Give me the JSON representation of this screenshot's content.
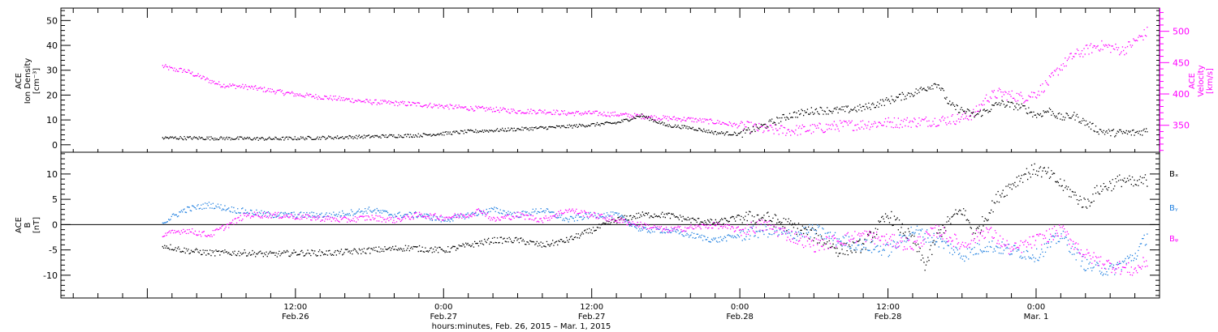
{
  "chart_data": [
    {
      "type": "scatter",
      "panel": "top",
      "ylabel_left": [
        "ACE",
        "Ion Density",
        "[cm⁻³]"
      ],
      "ylabel_right": [
        "ACE",
        "Velocity",
        "[km/s]"
      ],
      "ylim_left": [
        -3,
        55
      ],
      "yticks_left": [
        "0",
        "10",
        "20",
        "30",
        "40",
        "50"
      ],
      "ylim_right": [
        307,
        537
      ],
      "yticks_right": [
        "350",
        "400",
        "450",
        "500"
      ],
      "x_range_hours_from_feb26_0000": [
        -7,
        82
      ],
      "series": [
        {
          "axis": "left",
          "color": "#000000",
          "points": [
            [
              1.2,
              3
            ],
            [
              6,
              2.8
            ],
            [
              10,
              2.6
            ],
            [
              14,
              3
            ],
            [
              18,
              3.5
            ],
            [
              22,
              4
            ],
            [
              26,
              5.5
            ],
            [
              30,
              6.5
            ],
            [
              34,
              7.5
            ],
            [
              38,
              9
            ],
            [
              40,
              12
            ],
            [
              41,
              10
            ],
            [
              42,
              8
            ],
            [
              44,
              7
            ],
            [
              46,
              5
            ],
            [
              48,
              4.5
            ],
            [
              50,
              8
            ],
            [
              52,
              12
            ],
            [
              54,
              14
            ],
            [
              56,
              14
            ],
            [
              58,
              15
            ],
            [
              60,
              18
            ],
            [
              62,
              21
            ],
            [
              64,
              25
            ],
            [
              65,
              16
            ],
            [
              67,
              12
            ],
            [
              68,
              14
            ],
            [
              69,
              17
            ],
            [
              71,
              15
            ],
            [
              72,
              12
            ],
            [
              73,
              14
            ],
            [
              74,
              11
            ],
            [
              75,
              12
            ],
            [
              76,
              9
            ],
            [
              77,
              6
            ],
            [
              78,
              5
            ],
            [
              79,
              5
            ],
            [
              80,
              5
            ],
            [
              81,
              6
            ]
          ]
        },
        {
          "axis": "right",
          "color": "#ff00ff",
          "points": [
            [
              1.2,
              445
            ],
            [
              2,
              440
            ],
            [
              3,
              438
            ],
            [
              4,
              430
            ],
            [
              5,
              422
            ],
            [
              6,
              415
            ],
            [
              8,
              412
            ],
            [
              10,
              406
            ],
            [
              12,
              400
            ],
            [
              14,
              396
            ],
            [
              16,
              392
            ],
            [
              18,
              388
            ],
            [
              20,
              386
            ],
            [
              22,
              384
            ],
            [
              24,
              381
            ],
            [
              26,
              378
            ],
            [
              28,
              376
            ],
            [
              30,
              373
            ],
            [
              32,
              373
            ],
            [
              34,
              370
            ],
            [
              36,
              370
            ],
            [
              38,
              368
            ],
            [
              40,
              365
            ],
            [
              42,
              362
            ],
            [
              44,
              360
            ],
            [
              46,
              356
            ],
            [
              48,
              350
            ],
            [
              50,
              344
            ],
            [
              52,
              342
            ],
            [
              54,
              345
            ],
            [
              56,
              350
            ],
            [
              58,
              352
            ],
            [
              60,
              355
            ],
            [
              62,
              356
            ],
            [
              64,
              358
            ],
            [
              65,
              360
            ],
            [
              66,
              362
            ],
            [
              67,
              370
            ],
            [
              68,
              395
            ],
            [
              69,
              402
            ],
            [
              70,
              398
            ],
            [
              71,
              395
            ],
            [
              72,
              402
            ],
            [
              73,
              420
            ],
            [
              74,
              445
            ],
            [
              75,
              462
            ],
            [
              76,
              470
            ],
            [
              77,
              478
            ],
            [
              78,
              475
            ],
            [
              79,
              470
            ],
            [
              80,
              485
            ],
            [
              81,
              500
            ]
          ]
        }
      ]
    },
    {
      "type": "scatter",
      "panel": "bottom",
      "ylabel": [
        "ACE",
        "B",
        "[nT]"
      ],
      "ylim": [
        -14.5,
        14.3
      ],
      "yticks": [
        "-10",
        "-5",
        "0",
        "5",
        "10"
      ],
      "zero_line": true,
      "x_range_hours_from_feb26_0000": [
        -7,
        82
      ],
      "legend_position": "right",
      "series": [
        {
          "name": "Bₓ",
          "color": "#000000",
          "points": [
            [
              1.2,
              -4
            ],
            [
              3,
              -5
            ],
            [
              5,
              -5.5
            ],
            [
              8,
              -5.5
            ],
            [
              10,
              -5.8
            ],
            [
              12,
              -5.5
            ],
            [
              15,
              -5.5
            ],
            [
              18,
              -5
            ],
            [
              21,
              -4.5
            ],
            [
              24,
              -5
            ],
            [
              26,
              -4
            ],
            [
              28,
              -3
            ],
            [
              30,
              -3
            ],
            [
              32,
              -4
            ],
            [
              34,
              -3
            ],
            [
              36,
              -1
            ],
            [
              38,
              1
            ],
            [
              40,
              2
            ],
            [
              42,
              2
            ],
            [
              44,
              1
            ],
            [
              46,
              0.5
            ],
            [
              48,
              1.5
            ],
            [
              50,
              1.5
            ],
            [
              52,
              0
            ],
            [
              54,
              -2
            ],
            [
              56,
              -5
            ],
            [
              58,
              -4
            ],
            [
              60,
              2
            ],
            [
              62,
              -3
            ],
            [
              63,
              -8
            ],
            [
              64,
              -2
            ],
            [
              65,
              1
            ],
            [
              66,
              3
            ],
            [
              67,
              -2
            ],
            [
              68,
              2
            ],
            [
              69,
              6
            ],
            [
              70,
              8
            ],
            [
              71,
              10
            ],
            [
              72,
              11
            ],
            [
              73,
              10
            ],
            [
              74,
              8
            ],
            [
              75,
              6
            ],
            [
              76,
              4
            ],
            [
              77,
              7
            ],
            [
              78,
              8
            ],
            [
              79,
              9
            ],
            [
              80,
              8
            ],
            [
              81,
              9
            ]
          ]
        },
        {
          "name": "Bᵧ",
          "color": "#1e7fe0",
          "points": [
            [
              1.2,
              0.5
            ],
            [
              3,
              3
            ],
            [
              5,
              4
            ],
            [
              7,
              3
            ],
            [
              10,
              2
            ],
            [
              12,
              2
            ],
            [
              15,
              2
            ],
            [
              18,
              3
            ],
            [
              20,
              2
            ],
            [
              22,
              2
            ],
            [
              24,
              1
            ],
            [
              26,
              2
            ],
            [
              28,
              3
            ],
            [
              30,
              2
            ],
            [
              32,
              3
            ],
            [
              34,
              1
            ],
            [
              36,
              2
            ],
            [
              38,
              2
            ],
            [
              40,
              -1
            ],
            [
              42,
              -1
            ],
            [
              44,
              -2
            ],
            [
              46,
              -3
            ],
            [
              48,
              -2
            ],
            [
              50,
              -1
            ],
            [
              52,
              -2
            ],
            [
              54,
              -1
            ],
            [
              56,
              -3
            ],
            [
              58,
              -4
            ],
            [
              60,
              -5
            ],
            [
              62,
              -1
            ],
            [
              64,
              -3
            ],
            [
              66,
              -6
            ],
            [
              68,
              -4
            ],
            [
              70,
              -5
            ],
            [
              72,
              -6
            ],
            [
              74,
              -2
            ],
            [
              76,
              -8
            ],
            [
              78,
              -9
            ],
            [
              80,
              -6
            ],
            [
              81,
              -2
            ]
          ]
        },
        {
          "name": "Bᵩ",
          "color": "#ff00ff",
          "points": [
            [
              1.2,
              -2
            ],
            [
              3,
              -1
            ],
            [
              5,
              -2
            ],
            [
              8,
              2
            ],
            [
              10,
              2
            ],
            [
              13,
              1.5
            ],
            [
              16,
              1
            ],
            [
              18,
              1.5
            ],
            [
              20,
              1
            ],
            [
              22,
              2
            ],
            [
              24,
              1.5
            ],
            [
              26,
              2
            ],
            [
              27,
              3
            ],
            [
              28,
              1
            ],
            [
              30,
              2
            ],
            [
              32,
              1
            ],
            [
              34,
              3
            ],
            [
              36,
              2
            ],
            [
              38,
              1
            ],
            [
              40,
              0
            ],
            [
              42,
              -1
            ],
            [
              44,
              -0.5
            ],
            [
              46,
              0
            ],
            [
              48,
              -1
            ],
            [
              50,
              0
            ],
            [
              52,
              -2
            ],
            [
              54,
              -4
            ],
            [
              56,
              -3
            ],
            [
              58,
              -2
            ],
            [
              60,
              -3
            ],
            [
              62,
              -4
            ],
            [
              64,
              -1
            ],
            [
              66,
              -4
            ],
            [
              68,
              -1
            ],
            [
              70,
              -5
            ],
            [
              72,
              -3
            ],
            [
              74,
              -1
            ],
            [
              76,
              -6
            ],
            [
              78,
              -8
            ],
            [
              80,
              -9
            ],
            [
              81,
              -7
            ]
          ]
        }
      ]
    }
  ],
  "x_axis": {
    "major_ticks": [
      {
        "h": 12,
        "time": "12:00",
        "date": "Feb.26"
      },
      {
        "h": 24,
        "time": "0:00",
        "date": "Feb.27"
      },
      {
        "h": 36,
        "time": "12:00",
        "date": "Feb.27"
      },
      {
        "h": 48,
        "time": "0:00",
        "date": "Feb.28"
      },
      {
        "h": 60,
        "time": "12:00",
        "date": "Feb.28"
      },
      {
        "h": 72,
        "time": "0:00",
        "date": "Mar. 1"
      }
    ],
    "xlabel": "hours:minutes, Feb. 26, 2015 – Mar. 1, 2015"
  },
  "colors": {
    "black": "#000000",
    "magenta": "#ff00ff",
    "blue": "#1e7fe0"
  }
}
